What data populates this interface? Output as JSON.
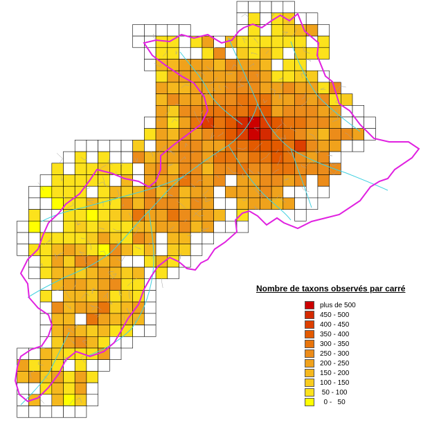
{
  "legend": {
    "title": "Nombre de taxons observés par carré",
    "classes": [
      {
        "label": "plus de 500",
        "color": "#cc0000"
      },
      {
        "label": "450 - 500",
        "color": "#d42a00"
      },
      {
        "label": "400 - 450",
        "color": "#dd3f00"
      },
      {
        "label": "350 - 400",
        "color": "#e35a00"
      },
      {
        "label": "300 - 350",
        "color": "#e8750c"
      },
      {
        "label": "250 - 300",
        "color": "#ec8c1a"
      },
      {
        "label": "200 - 250",
        "color": "#f0a21c"
      },
      {
        "label": "150 - 200",
        "color": "#f5b81e"
      },
      {
        "label": "100 - 150",
        "color": "#f8cc1e"
      },
      {
        "label": " 50 - 100",
        "color": "#fce21c"
      },
      {
        "label": "  0 -   50",
        "color": "#ffff00"
      }
    ]
  },
  "colors": {
    "boundary": "#e020e0",
    "rivers": "#40d0e0",
    "communes": "#a0a0a0",
    "grid_lines": "#000000"
  }
}
